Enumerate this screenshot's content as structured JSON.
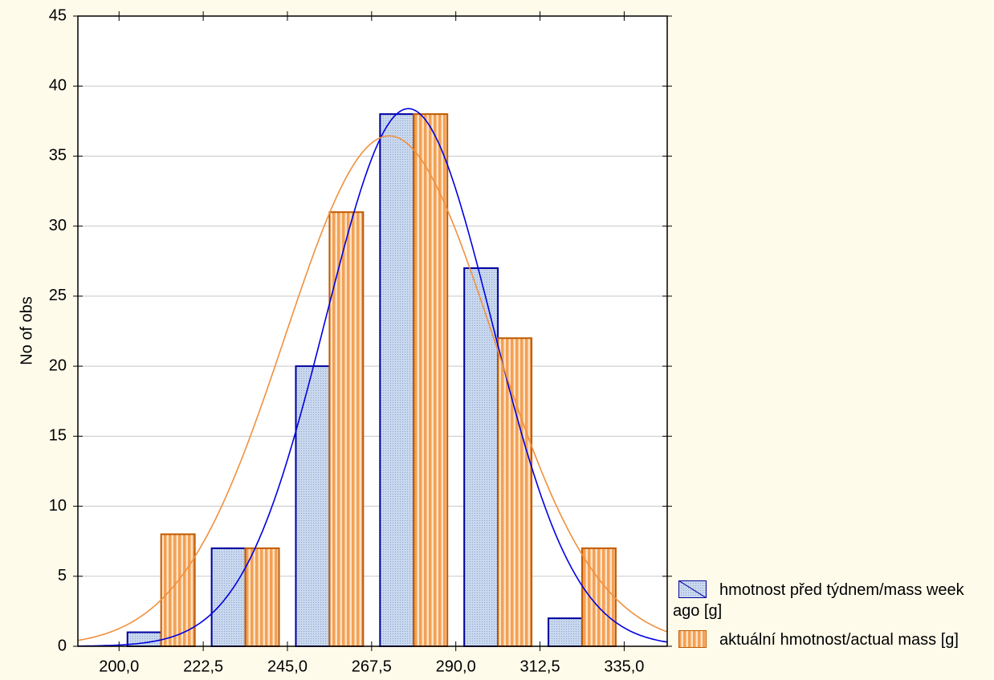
{
  "chart_data": {
    "type": "histogram",
    "y_label": "No of obs",
    "bins": [
      200,
      222.5,
      245,
      267.5,
      290,
      312.5,
      335
    ],
    "series": [
      {
        "name": "hmotnost před týdnem/mass week ago [g]",
        "color": "#0000a0",
        "fill": "#b9cbe6",
        "values": [
          1,
          7,
          20,
          38,
          27,
          2
        ]
      },
      {
        "name": "aktuální hmotnost/actual mass [g]",
        "color": "#c05a00",
        "fill": "#f5a45e",
        "values": [
          8,
          7,
          31,
          38,
          22,
          7
        ]
      }
    ],
    "xlim": [
      189,
      346.5
    ],
    "xticks": [
      {
        "value": 200,
        "label": "200,0"
      },
      {
        "value": 222.5,
        "label": "222,5"
      },
      {
        "value": 245,
        "label": "245,0"
      },
      {
        "value": 267.5,
        "label": "267,5"
      },
      {
        "value": 290,
        "label": "290,0"
      },
      {
        "value": 312.5,
        "label": "312,5"
      },
      {
        "value": 335,
        "label": "335,0"
      }
    ],
    "ylim": [
      0,
      45
    ],
    "yticks": [
      0,
      5,
      10,
      15,
      20,
      25,
      30,
      35,
      40,
      45
    ],
    "grid": true,
    "legend": "bottom-right"
  }
}
